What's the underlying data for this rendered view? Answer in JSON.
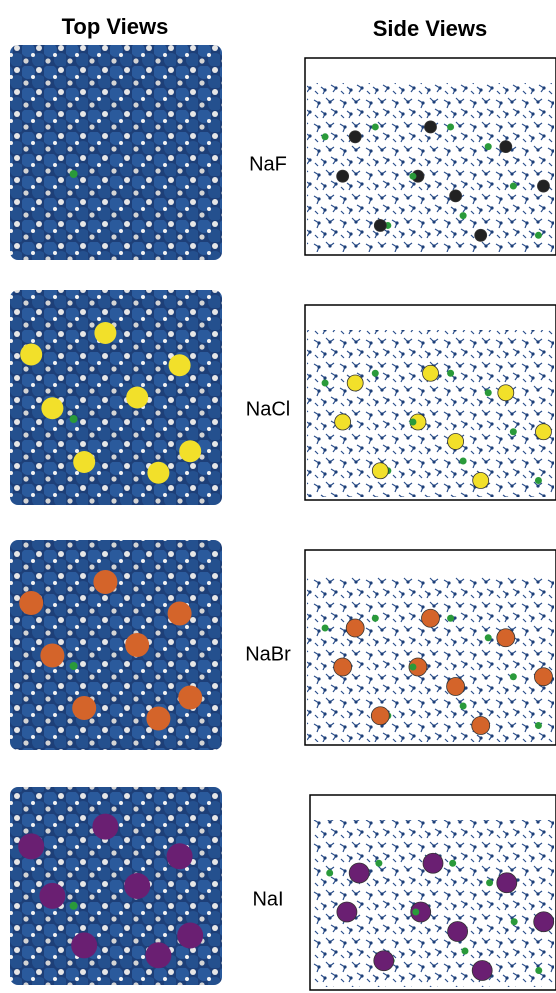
{
  "headers": {
    "top": "Top Views",
    "side": "Side Views"
  },
  "rows": [
    {
      "label": "NaF"
    },
    {
      "label": "NaCl"
    },
    {
      "label": "NaBr"
    },
    {
      "label": "NaI"
    }
  ]
}
